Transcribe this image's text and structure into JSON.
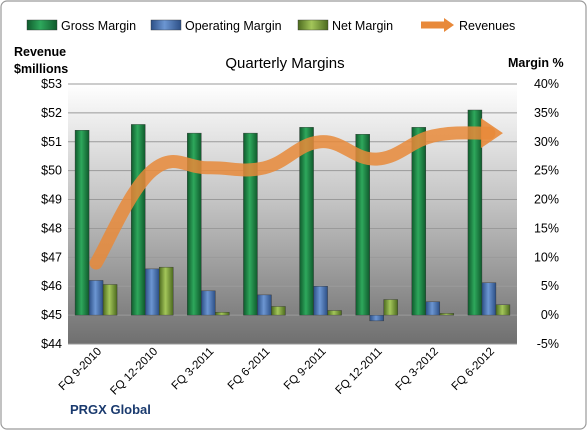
{
  "chart_data": {
    "type": "bar",
    "title": "Quarterly Margins",
    "company": "PRGX Global",
    "left_axis": {
      "label_line1": "Revenue",
      "label_line2": "$millions",
      "min": 44,
      "max": 53,
      "ticks": [
        "$44",
        "$45",
        "$46",
        "$47",
        "$48",
        "$49",
        "$50",
        "$51",
        "$52",
        "$53"
      ]
    },
    "right_axis": {
      "label": "Margin %",
      "min": -5,
      "max": 40,
      "ticks": [
        "-5%",
        "0%",
        "5%",
        "10%",
        "15%",
        "20%",
        "25%",
        "30%",
        "35%",
        "40%"
      ]
    },
    "categories": [
      "FQ 9-2010",
      "FQ 12-2010",
      "FQ 3-2011",
      "FQ 6-2011",
      "FQ 9-2011",
      "FQ 12-2011",
      "FQ 3-2012",
      "FQ 6-2012"
    ],
    "series": [
      {
        "name": "Gross Margin",
        "type": "bar",
        "axis": "right",
        "color": "#1f8a4a",
        "values": [
          32,
          33,
          31.5,
          31.5,
          32.5,
          31.3,
          32.5,
          35.5
        ]
      },
      {
        "name": "Operating Margin",
        "type": "bar",
        "axis": "right",
        "color": "#4a78b8",
        "values": [
          6,
          8,
          4.2,
          3.5,
          5,
          -1,
          2.3,
          5.6
        ]
      },
      {
        "name": "Net Margin",
        "type": "bar",
        "axis": "right",
        "color": "#7da33a",
        "values": [
          5.3,
          8.3,
          0.5,
          1.5,
          0.8,
          2.7,
          0.3,
          1.8
        ]
      },
      {
        "name": "Revenues",
        "type": "line",
        "axis": "left",
        "color": "#e8893a",
        "values": [
          46.8,
          50.0,
          50.1,
          50.1,
          51.0,
          50.4,
          51.2,
          51.3
        ]
      }
    ],
    "grid": true,
    "legend_position": "top"
  }
}
